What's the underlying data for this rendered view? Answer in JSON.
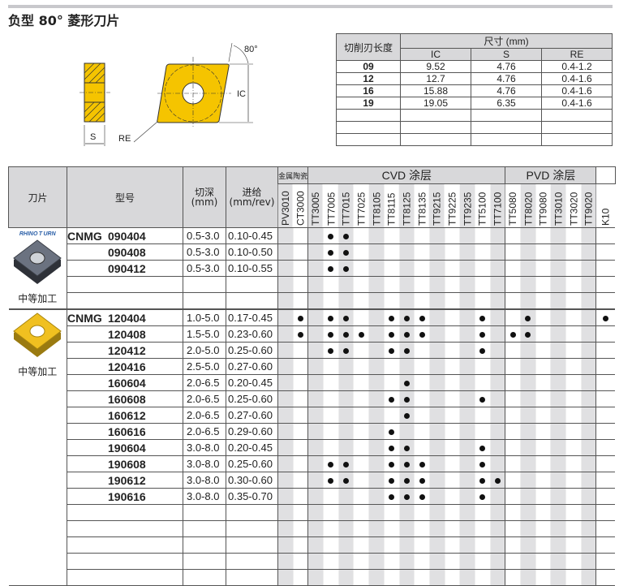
{
  "title": "负型 80° 菱形刀片",
  "diagram": {
    "angle": "80°",
    "ic": "IC",
    "s": "S",
    "re": "RE",
    "insert_color": "#f5c400"
  },
  "dims": {
    "col_head": "切削刃长度",
    "size_head": "尺寸 (mm)",
    "cols": [
      "IC",
      "S",
      "RE"
    ],
    "rows": [
      [
        "09",
        "9.52",
        "4.76",
        "0.4-1.2"
      ],
      [
        "12",
        "12.7",
        "4.76",
        "0.4-1.6"
      ],
      [
        "16",
        "15.88",
        "4.76",
        "0.4-1.6"
      ],
      [
        "19",
        "19.05",
        "6.35",
        "0.4-1.6"
      ],
      [
        "",
        "",
        "",
        ""
      ],
      [
        "",
        "",
        "",
        ""
      ],
      [
        "",
        "",
        "",
        ""
      ]
    ]
  },
  "main": {
    "headers": {
      "insert": "刀片",
      "model": "型号",
      "depth": "切深\n(mm)",
      "feed": "进给\n(mm/rev)",
      "cermet": "金属陶瓷",
      "cvd": "CVD 涂层",
      "pvd": "PVD 涂层"
    },
    "grades": [
      "PV3010",
      "CT3000",
      "TT3005",
      "TT7005",
      "TT7015",
      "TT7025",
      "TT8105",
      "TT8115",
      "TT8125",
      "TT8135",
      "TT9215",
      "TT9225",
      "TT9235",
      "TT5100",
      "TT7100",
      "TT5080",
      "TT8020",
      "TT9080",
      "TT3010",
      "TT3020",
      "TT9020",
      "K10"
    ],
    "groups": [
      {
        "brand": "RHINOTURN",
        "label": "中等加工",
        "image": "grey-insert",
        "rows": [
          {
            "prefix": "CNMG",
            "code": "090404",
            "depth": "0.5-3.0",
            "feed": "0.10-0.45",
            "dots": [
              3,
              4
            ]
          },
          {
            "prefix": "",
            "code": "090408",
            "depth": "0.5-3.0",
            "feed": "0.10-0.50",
            "dots": [
              3,
              4
            ]
          },
          {
            "prefix": "",
            "code": "090412",
            "depth": "0.5-3.0",
            "feed": "0.10-0.55",
            "dots": [
              3,
              4
            ]
          },
          {
            "prefix": "",
            "code": "",
            "depth": "",
            "feed": "",
            "dots": []
          },
          {
            "prefix": "",
            "code": "",
            "depth": "",
            "feed": "",
            "dots": []
          }
        ]
      },
      {
        "brand": "",
        "label": "中等加工",
        "image": "gold-insert",
        "rows": [
          {
            "prefix": "CNMG",
            "code": "120404",
            "depth": "1.0-5.0",
            "feed": "0.17-0.45",
            "dots": [
              1,
              3,
              4,
              7,
              8,
              9,
              13,
              16,
              21
            ]
          },
          {
            "prefix": "",
            "code": "120408",
            "depth": "1.5-5.0",
            "feed": "0.23-0.60",
            "dots": [
              1,
              3,
              4,
              5,
              7,
              8,
              9,
              13,
              15,
              16
            ]
          },
          {
            "prefix": "",
            "code": "120412",
            "depth": "2.0-5.0",
            "feed": "0.25-0.60",
            "dots": [
              3,
              4,
              7,
              8,
              13
            ]
          },
          {
            "prefix": "",
            "code": "120416",
            "depth": "2.5-5.0",
            "feed": "0.27-0.60",
            "dots": []
          },
          {
            "prefix": "",
            "code": "160604",
            "depth": "2.0-6.5",
            "feed": "0.20-0.45",
            "dots": [
              8
            ]
          },
          {
            "prefix": "",
            "code": "160608",
            "depth": "2.0-6.5",
            "feed": "0.25-0.60",
            "dots": [
              7,
              8,
              13
            ]
          },
          {
            "prefix": "",
            "code": "160612",
            "depth": "2.0-6.5",
            "feed": "0.27-0.60",
            "dots": [
              8
            ]
          },
          {
            "prefix": "",
            "code": "160616",
            "depth": "2.0-6.5",
            "feed": "0.29-0.60",
            "dots": [
              7
            ]
          },
          {
            "prefix": "",
            "code": "190604",
            "depth": "3.0-8.0",
            "feed": "0.20-0.45",
            "dots": [
              7,
              8,
              13
            ]
          },
          {
            "prefix": "",
            "code": "190608",
            "depth": "3.0-8.0",
            "feed": "0.25-0.60",
            "dots": [
              3,
              4,
              7,
              8,
              9,
              13
            ]
          },
          {
            "prefix": "",
            "code": "190612",
            "depth": "3.0-8.0",
            "feed": "0.30-0.60",
            "dots": [
              3,
              4,
              7,
              8,
              9,
              13,
              14
            ]
          },
          {
            "prefix": "",
            "code": "190616",
            "depth": "3.0-8.0",
            "feed": "0.35-0.70",
            "dots": [
              7,
              8,
              9,
              13
            ]
          },
          {
            "prefix": "",
            "code": "",
            "depth": "",
            "feed": "",
            "dots": []
          },
          {
            "prefix": "",
            "code": "",
            "depth": "",
            "feed": "",
            "dots": []
          },
          {
            "prefix": "",
            "code": "",
            "depth": "",
            "feed": "",
            "dots": []
          },
          {
            "prefix": "",
            "code": "",
            "depth": "",
            "feed": "",
            "dots": []
          },
          {
            "prefix": "",
            "code": "",
            "depth": "",
            "feed": "",
            "dots": []
          }
        ]
      }
    ]
  }
}
